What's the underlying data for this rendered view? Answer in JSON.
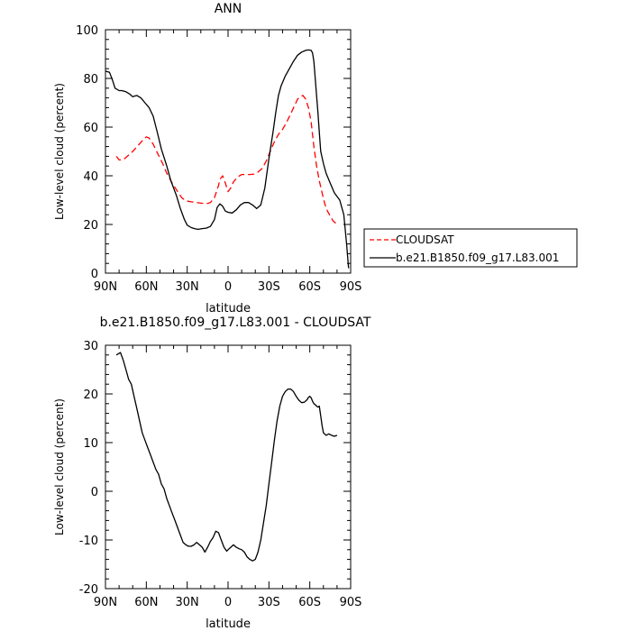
{
  "chart_data": [
    {
      "type": "line",
      "title": "ANN",
      "xlabel": "latitude",
      "ylabel": "Low-level cloud (percent)",
      "xlim": [
        90,
        -90
      ],
      "ylim": [
        0,
        100
      ],
      "x_ticks": [
        {
          "value": 90,
          "label": "90N"
        },
        {
          "value": 60,
          "label": "60N"
        },
        {
          "value": 30,
          "label": "30N"
        },
        {
          "value": 0,
          "label": "0"
        },
        {
          "value": -30,
          "label": "30S"
        },
        {
          "value": -60,
          "label": "60S"
        },
        {
          "value": -90,
          "label": "90S"
        }
      ],
      "y_ticks": [
        0,
        20,
        40,
        60,
        80,
        100
      ],
      "legend_position": "right",
      "series": [
        {
          "name": "CLOUDSAT",
          "color": "#ff0000",
          "dash": "dashed",
          "x": [
            82,
            80,
            77,
            74,
            70,
            66,
            62,
            60,
            58,
            55,
            52,
            48,
            45,
            41,
            37,
            34,
            31,
            27,
            23,
            19,
            16,
            13,
            10,
            7,
            6,
            4,
            2,
            0,
            -2,
            -4,
            -7,
            -10,
            -13,
            -16,
            -19,
            -22,
            -25,
            -28,
            -31,
            -34,
            -37,
            -40,
            -43,
            -46,
            -49,
            -51,
            -53,
            -55,
            -57,
            -59,
            -61,
            -63,
            -65,
            -67,
            -69,
            -71,
            -73,
            -75,
            -77,
            -80
          ],
          "y": [
            48,
            46.5,
            46.5,
            48,
            50,
            52.5,
            55,
            56,
            55.5,
            53,
            49.5,
            45,
            41,
            37,
            33.5,
            31,
            29.7,
            29.3,
            29,
            28.7,
            28.5,
            29,
            31,
            36,
            38.5,
            40,
            37,
            33.5,
            35,
            37.5,
            39.5,
            40.5,
            40.5,
            40.5,
            40.7,
            41.5,
            43,
            46,
            50,
            54,
            57,
            59,
            62,
            65.5,
            69,
            71.5,
            72.5,
            73,
            71.5,
            68,
            62,
            52,
            44,
            38,
            33,
            28.5,
            25.5,
            23.5,
            21.5,
            20
          ]
        },
        {
          "name": "b.e21.B1850.f09_g17.L83.001",
          "color": "#000000",
          "dash": "solid",
          "x": [
            90,
            87,
            85,
            83,
            80,
            78,
            75,
            72,
            70,
            67,
            64,
            61,
            58,
            55,
            52,
            49,
            45,
            42,
            38,
            35,
            32,
            30,
            27,
            24,
            22,
            19,
            16,
            13,
            10,
            8,
            6,
            4,
            2,
            0,
            -3,
            -6,
            -9,
            -12,
            -15,
            -18,
            -21,
            -24,
            -27,
            -30,
            -33,
            -35,
            -37,
            -39,
            -42,
            -45,
            -48,
            -51,
            -54,
            -57,
            -59,
            -61,
            -62,
            -63,
            -64,
            -65,
            -66,
            -67,
            -68,
            -70,
            -72,
            -75,
            -78,
            -82,
            -85,
            -87,
            -88.5
          ],
          "y": [
            83,
            82.5,
            79.5,
            76,
            75,
            75,
            74.5,
            73.5,
            72.5,
            73,
            72,
            70,
            68,
            64.5,
            58,
            51,
            44,
            38,
            32,
            26.5,
            22,
            19.7,
            18.7,
            18.2,
            18,
            18.3,
            18.5,
            19.2,
            22,
            27,
            28.5,
            27.5,
            25.5,
            25,
            24.7,
            26,
            28,
            29,
            29,
            28,
            26.5,
            28,
            35,
            47,
            58,
            66,
            73,
            77,
            81,
            84,
            87,
            89.5,
            90.8,
            91.5,
            91.7,
            91.5,
            90.5,
            87,
            80,
            73,
            66,
            58,
            50,
            45,
            41,
            37,
            33,
            30,
            24,
            12,
            2
          ]
        }
      ]
    },
    {
      "type": "line",
      "title": "b.e21.B1850.f09_g17.L83.001 - CLOUDSAT",
      "xlabel": "latitude",
      "ylabel": "Low-level cloud (percent)",
      "xlim": [
        90,
        -90
      ],
      "ylim": [
        -20,
        30
      ],
      "x_ticks": [
        {
          "value": 90,
          "label": "90N"
        },
        {
          "value": 60,
          "label": "60N"
        },
        {
          "value": 30,
          "label": "30N"
        },
        {
          "value": 0,
          "label": "0"
        },
        {
          "value": -30,
          "label": "30S"
        },
        {
          "value": -60,
          "label": "60S"
        },
        {
          "value": -90,
          "label": "90S"
        }
      ],
      "y_ticks": [
        -20,
        -10,
        0,
        10,
        20,
        30
      ],
      "series": [
        {
          "name": "",
          "color": "#000000",
          "dash": "solid",
          "x": [
            82,
            79,
            77,
            75,
            73,
            71,
            69,
            67,
            65,
            63,
            61,
            59,
            57,
            55,
            53,
            51,
            49,
            47,
            45,
            43,
            41,
            39,
            37,
            35,
            33,
            31,
            29,
            27,
            25,
            23,
            21,
            19,
            17,
            15,
            13,
            11,
            9,
            7,
            5,
            3,
            1,
            0,
            -2,
            -4,
            -6,
            -8,
            -10,
            -12,
            -14,
            -16,
            -18,
            -20,
            -22,
            -24,
            -26,
            -28,
            -30,
            -32,
            -34,
            -36,
            -38,
            -40,
            -42,
            -44,
            -46,
            -48,
            -50,
            -52,
            -54,
            -56,
            -58,
            -59,
            -60,
            -61,
            -62,
            -63,
            -64,
            -65,
            -66,
            -67,
            -68,
            -69,
            -70,
            -72,
            -74,
            -76,
            -78,
            -80
          ],
          "y": [
            28,
            28.5,
            27,
            25,
            23,
            22,
            19.5,
            17,
            14.5,
            12,
            10.5,
            9,
            7.5,
            6,
            4.5,
            3.5,
            1.5,
            0.5,
            -1.5,
            -3,
            -4.5,
            -6,
            -7.5,
            -9,
            -10.5,
            -11,
            -11.3,
            -11.3,
            -11,
            -10.5,
            -11,
            -11.5,
            -12.5,
            -11.5,
            -10.3,
            -9.5,
            -8.2,
            -8.5,
            -10,
            -11.5,
            -12.3,
            -12,
            -11.5,
            -11,
            -11.5,
            -11.8,
            -12,
            -12.5,
            -13.5,
            -14,
            -14.3,
            -14,
            -12.5,
            -10,
            -6.5,
            -3,
            1.5,
            6,
            10.5,
            14.5,
            17.5,
            19.5,
            20.5,
            21,
            21,
            20.5,
            19.5,
            18.7,
            18.2,
            18.3,
            18.8,
            19.3,
            19.5,
            19.2,
            18.5,
            18,
            17.8,
            17.5,
            17.3,
            17.5,
            15.5,
            13.5,
            12,
            11.5,
            11.8,
            11.5,
            11.3,
            11.5
          ]
        }
      ]
    }
  ]
}
